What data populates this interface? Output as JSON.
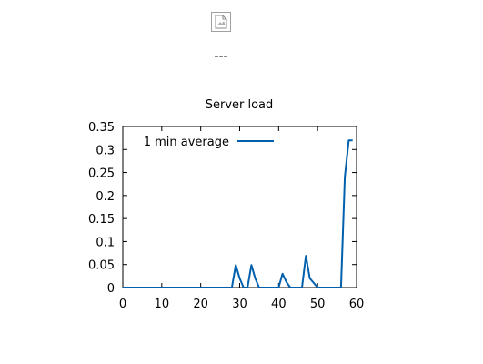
{
  "image_placeholder": {
    "icon": "broken-image-icon"
  },
  "separator_text": "---",
  "chart_data": {
    "type": "line",
    "title": "Server load",
    "xlabel": "",
    "ylabel": "",
    "xlim": [
      0,
      60
    ],
    "ylim": [
      0,
      0.35
    ],
    "xticks": [
      "0",
      "10",
      "20",
      "30",
      "40",
      "50",
      "60"
    ],
    "yticks": [
      "0",
      "0.05",
      "0.1",
      "0.15",
      "0.2",
      "0.25",
      "0.3",
      "0.35"
    ],
    "grid": false,
    "legend_position": "top-left",
    "series": [
      {
        "name": "1 min average",
        "color": "#0060ad",
        "x": [
          0,
          1,
          2,
          3,
          4,
          5,
          6,
          7,
          8,
          9,
          10,
          11,
          12,
          13,
          14,
          15,
          16,
          17,
          18,
          19,
          20,
          21,
          22,
          23,
          24,
          25,
          26,
          27,
          28,
          29,
          30,
          31,
          32,
          33,
          34,
          35,
          36,
          37,
          38,
          39,
          40,
          41,
          42,
          43,
          44,
          45,
          46,
          47,
          48,
          49,
          50,
          51,
          52,
          53,
          54,
          55,
          56,
          57,
          58,
          59
        ],
        "y": [
          0,
          0,
          0,
          0,
          0,
          0,
          0,
          0,
          0,
          0,
          0,
          0,
          0,
          0,
          0,
          0,
          0,
          0,
          0,
          0,
          0,
          0,
          0,
          0,
          0,
          0,
          0,
          0,
          0,
          0.049,
          0.02,
          0,
          0,
          0.049,
          0.02,
          0,
          0,
          0,
          0,
          0,
          0,
          0.03,
          0.012,
          0,
          0,
          0,
          0,
          0.069,
          0.02,
          0.01,
          0,
          0,
          0,
          0,
          0,
          0,
          0,
          0.24,
          0.32,
          0.32
        ]
      }
    ]
  }
}
